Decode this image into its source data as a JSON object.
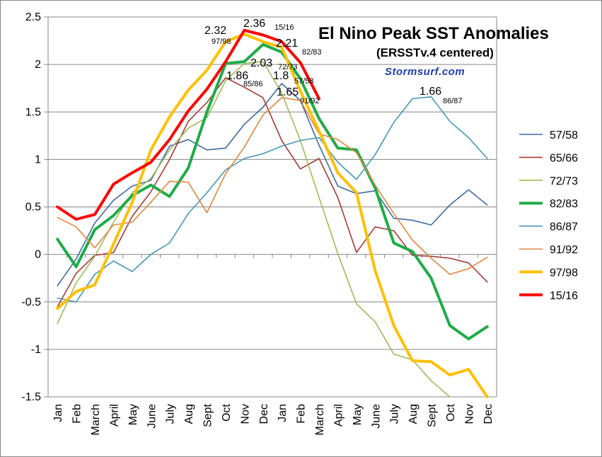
{
  "chart_data": {
    "type": "line",
    "title": "El Nino Peak SST Anomalies",
    "subtitle": "(ERSSTv.4 centered)",
    "credit": "Stormsurf.com",
    "ylim": [
      -1.5,
      2.5
    ],
    "yticks": [
      "2.5",
      "2",
      "1.5",
      "1",
      "0.5",
      "0",
      "-0.5",
      "-1",
      "-1.5"
    ],
    "ytick_values": [
      2.5,
      2,
      1.5,
      1,
      0.5,
      0,
      -0.5,
      -1,
      -1.5
    ],
    "categories": [
      "Jan",
      "Feb",
      "March",
      "April",
      "May",
      "June",
      "July",
      "Aug",
      "Sept",
      "Oct",
      "Nov",
      "Dec",
      "Jan",
      "Feb",
      "March",
      "April",
      "May",
      "June",
      "July",
      "Aug",
      "Sept",
      "Oct",
      "Nov",
      "Dec"
    ],
    "grid": true,
    "legend_position": "right",
    "series": [
      {
        "name": "57/58",
        "color": "#3e6aa0",
        "width": 1.6,
        "values": [
          -0.33,
          -0.05,
          0.33,
          0.57,
          0.72,
          0.78,
          1.14,
          1.21,
          1.1,
          1.12,
          1.37,
          1.55,
          1.8,
          1.62,
          1.15,
          0.72,
          0.64,
          0.67,
          0.38,
          0.36,
          0.31,
          0.52,
          0.68,
          0.52
        ]
      },
      {
        "name": "65/66",
        "color": "#a23b36",
        "width": 1.6,
        "values": [
          -0.55,
          -0.2,
          -0.01,
          0.02,
          0.4,
          0.66,
          1.0,
          1.4,
          1.6,
          1.86,
          1.76,
          1.65,
          1.2,
          0.9,
          1.01,
          0.6,
          0.02,
          0.29,
          0.25,
          -0.01,
          -0.02,
          -0.04,
          -0.09,
          -0.29
        ]
      },
      {
        "name": "72/73",
        "color": "#9bbb59",
        "width": 1.6,
        "values": [
          -0.73,
          -0.3,
          -0.02,
          0.34,
          0.65,
          0.8,
          1.1,
          1.33,
          1.44,
          1.83,
          2.01,
          2.03,
          1.7,
          1.2,
          0.6,
          0.01,
          -0.52,
          -0.71,
          -1.05,
          -1.11,
          -1.33,
          -1.72,
          null,
          null
        ]
      },
      {
        "name": "82/83",
        "color": "#1fab48",
        "width": 4,
        "values": [
          0.16,
          -0.13,
          0.26,
          0.41,
          0.62,
          0.73,
          0.61,
          0.91,
          1.5,
          2.01,
          2.03,
          2.21,
          2.13,
          1.85,
          1.43,
          1.12,
          1.1,
          0.7,
          0.12,
          0.03,
          -0.25,
          -0.75,
          -0.89,
          -0.76
        ]
      },
      {
        "name": "86/87",
        "color": "#4596b4",
        "width": 1.6,
        "values": [
          -0.46,
          -0.5,
          -0.21,
          -0.07,
          -0.18,
          0.0,
          0.12,
          0.43,
          0.65,
          0.89,
          1.01,
          1.06,
          1.14,
          1.2,
          1.23,
          0.97,
          0.79,
          1.05,
          1.39,
          1.64,
          1.66,
          1.4,
          1.23,
          1.01
        ]
      },
      {
        "name": "91/92",
        "color": "#dd8843",
        "width": 1.6,
        "values": [
          0.39,
          0.29,
          0.07,
          0.31,
          0.34,
          0.55,
          0.77,
          0.76,
          0.44,
          0.85,
          1.13,
          1.47,
          1.65,
          1.62,
          1.27,
          1.21,
          1.07,
          0.73,
          0.43,
          0.15,
          -0.04,
          -0.21,
          -0.15,
          -0.03
        ]
      },
      {
        "name": "97/98",
        "color": "#ffc000",
        "width": 4,
        "values": [
          -0.57,
          -0.39,
          -0.32,
          0.11,
          0.55,
          1.1,
          1.45,
          1.73,
          1.94,
          2.24,
          2.32,
          2.24,
          2.18,
          1.72,
          1.3,
          0.86,
          0.65,
          -0.17,
          -0.75,
          -1.12,
          -1.13,
          -1.27,
          -1.21,
          -1.5
        ]
      },
      {
        "name": "15/16",
        "color": "#ff0000",
        "width": 4,
        "values": [
          0.5,
          0.37,
          0.42,
          0.74,
          0.86,
          0.97,
          1.21,
          1.51,
          1.74,
          2.03,
          2.36,
          2.31,
          2.24,
          2.02,
          1.64,
          null,
          null,
          null,
          null,
          null,
          null,
          null,
          null,
          null
        ]
      }
    ],
    "annotations": [
      {
        "value": "2.32",
        "label": "97/98"
      },
      {
        "value": "2.36",
        "label": "15/16"
      },
      {
        "value": "2.21",
        "label": "82/83"
      },
      {
        "value": "2.03",
        "label": "72/73"
      },
      {
        "value": "1.86",
        "label": "85/86"
      },
      {
        "value": "1.8",
        "label": "57/58"
      },
      {
        "value": "1.65",
        "label": "91/92"
      },
      {
        "value": "1.66",
        "label": "86/87"
      }
    ]
  }
}
